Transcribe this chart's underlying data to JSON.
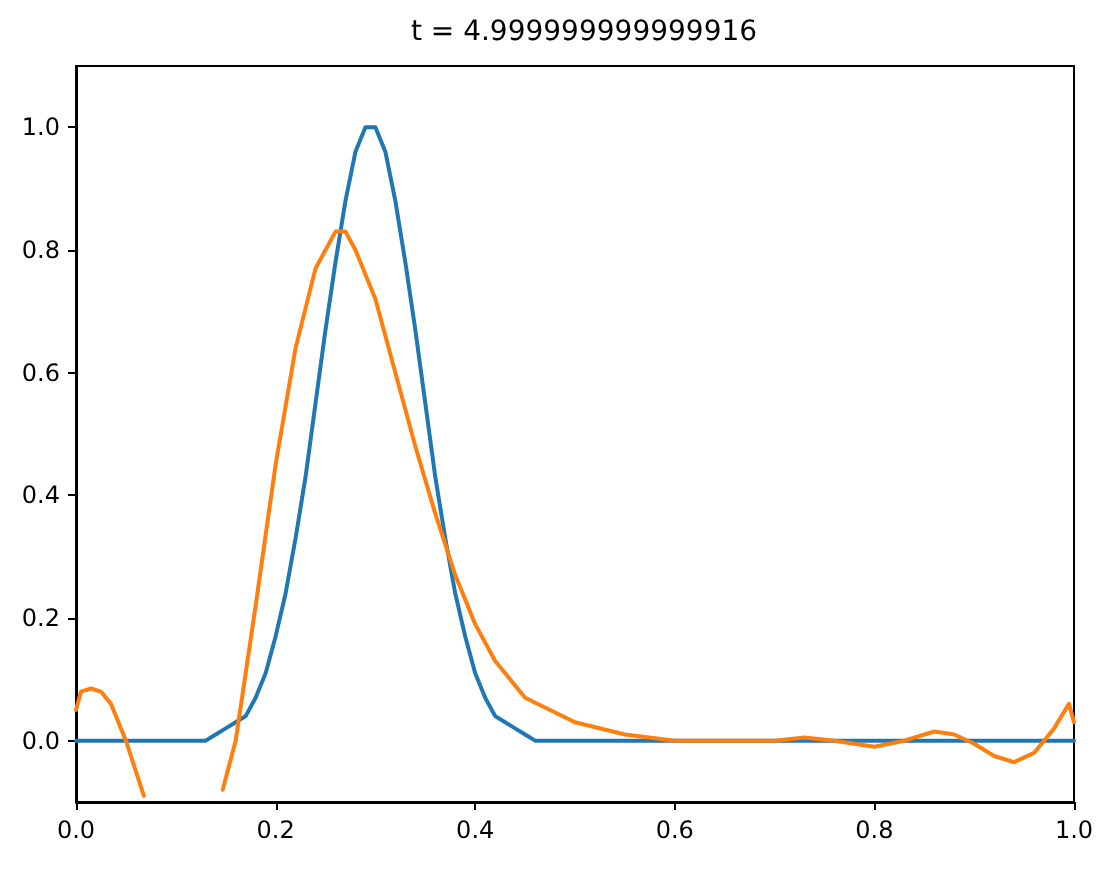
{
  "chart_data": {
    "type": "line",
    "title": "t = 4.999999999999916",
    "xlim": [
      0,
      1
    ],
    "ylim": [
      -0.1,
      1.1
    ],
    "xticks": [
      {
        "value": 0,
        "label": "0.0"
      },
      {
        "value": 0.2,
        "label": "0.2"
      },
      {
        "value": 0.4,
        "label": "0.4"
      },
      {
        "value": 0.6,
        "label": "0.6"
      },
      {
        "value": 0.8,
        "label": "0.8"
      },
      {
        "value": 1,
        "label": "1.0"
      }
    ],
    "yticks": [
      {
        "value": 0,
        "label": "0.0"
      },
      {
        "value": 0.2,
        "label": "0.2"
      },
      {
        "value": 0.4,
        "label": "0.4"
      },
      {
        "value": 0.6,
        "label": "0.6"
      },
      {
        "value": 0.8,
        "label": "0.8"
      },
      {
        "value": 1,
        "label": "1.0"
      }
    ],
    "grid": false,
    "marker": "none",
    "line_style": "solid",
    "series": [
      {
        "color": "#1f77b4",
        "x": [
          0,
          0.1,
          0.13,
          0.14,
          0.15,
          0.16,
          0.17,
          0.18,
          0.19,
          0.2,
          0.21,
          0.22,
          0.23,
          0.24,
          0.25,
          0.26,
          0.27,
          0.28,
          0.29,
          0.3,
          0.31,
          0.32,
          0.33,
          0.34,
          0.35,
          0.36,
          0.37,
          0.38,
          0.39,
          0.4,
          0.41,
          0.42,
          0.43,
          0.44,
          0.45,
          0.46,
          0.5,
          1
        ],
        "values": [
          0,
          0,
          0,
          0.01,
          0.02,
          0.03,
          0.04,
          0.07,
          0.11,
          0.17,
          0.24,
          0.33,
          0.43,
          0.55,
          0.67,
          0.78,
          0.88,
          0.96,
          1,
          1,
          0.96,
          0.88,
          0.78,
          0.67,
          0.55,
          0.43,
          0.33,
          0.24,
          0.17,
          0.11,
          0.07,
          0.04,
          0.03,
          0.02,
          0.01,
          0,
          0,
          0
        ]
      },
      {
        "color": "#ff7f0e",
        "x": [
          0,
          0.005,
          0.015,
          0.025,
          0.035,
          0.05,
          0.06,
          0.068,
          0.07,
          0.1,
          0.145,
          0.147,
          0.16,
          0.18,
          0.2,
          0.22,
          0.24,
          0.26,
          0.27,
          0.28,
          0.3,
          0.32,
          0.34,
          0.36,
          0.38,
          0.4,
          0.42,
          0.45,
          0.5,
          0.55,
          0.6,
          0.7,
          0.73,
          0.76,
          0.8,
          0.83,
          0.86,
          0.88,
          0.9,
          0.92,
          0.94,
          0.96,
          0.98,
          0.995,
          1
        ],
        "values": [
          0.05,
          0.08,
          0.085,
          0.08,
          0.06,
          0,
          -0.05,
          -0.09,
          null,
          null,
          null,
          -0.08,
          0,
          0.22,
          0.45,
          0.64,
          0.77,
          0.83,
          0.83,
          0.8,
          0.72,
          0.6,
          0.48,
          0.37,
          0.27,
          0.19,
          0.13,
          0.07,
          0.03,
          0.01,
          0,
          0,
          0.005,
          0,
          -0.01,
          0,
          0.015,
          0.01,
          -0.005,
          -0.025,
          -0.035,
          -0.02,
          0.02,
          0.06,
          0.03
        ]
      }
    ]
  }
}
